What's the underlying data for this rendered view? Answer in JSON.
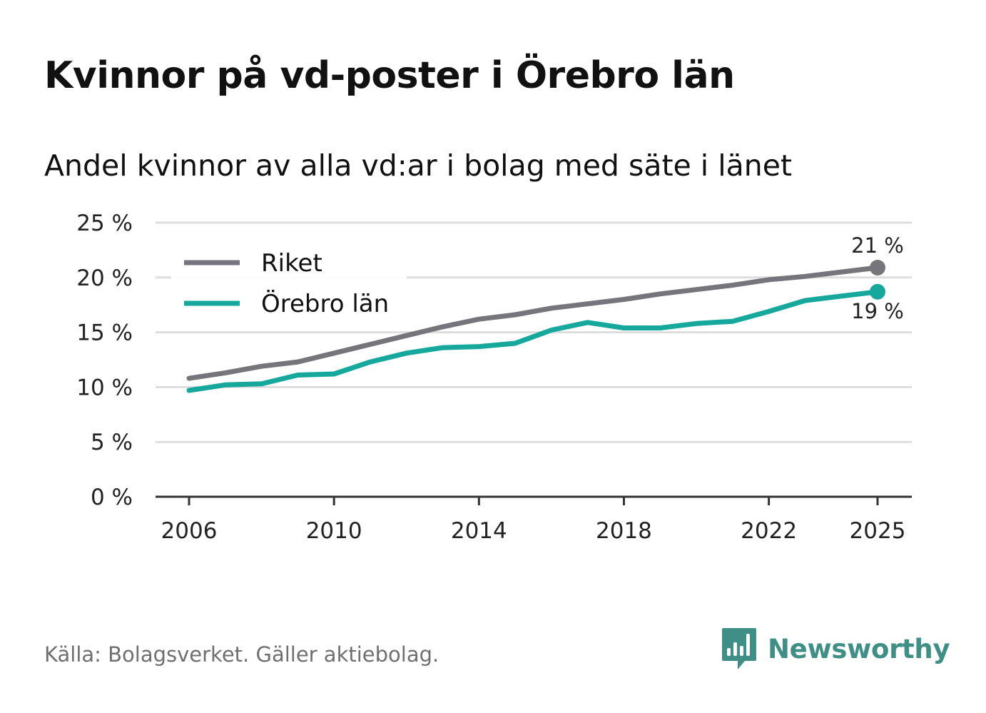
{
  "header": {
    "title": "Kvinnor på vd-poster i Örebro län",
    "subtitle": "Andel kvinnor av alla vd:ar i bolag med säte i länet"
  },
  "footer": {
    "source": "Källa: Bolagsverket. Gäller aktiebolag.",
    "brand": "Newsworthy"
  },
  "colors": {
    "riket": "#76757c",
    "orebro": "#16a89c",
    "grid": "#dedede",
    "axis": "#333333",
    "brand": "#3f8f86"
  },
  "chart_data": {
    "type": "line",
    "x": [
      2006,
      2007,
      2008,
      2009,
      2010,
      2011,
      2012,
      2013,
      2014,
      2015,
      2016,
      2017,
      2018,
      2019,
      2020,
      2021,
      2022,
      2023,
      2024,
      2025
    ],
    "series": [
      {
        "name": "Riket",
        "color": "#76757c",
        "values": [
          10.8,
          11.3,
          11.9,
          12.3,
          13.1,
          13.9,
          14.7,
          15.5,
          16.2,
          16.6,
          17.2,
          17.6,
          18.0,
          18.5,
          18.9,
          19.3,
          19.8,
          20.1,
          20.5,
          20.9
        ],
        "end_label": "21 %"
      },
      {
        "name": "Örebro län",
        "color": "#16a89c",
        "values": [
          9.7,
          10.2,
          10.3,
          11.1,
          11.2,
          12.3,
          13.1,
          13.6,
          13.7,
          14.0,
          15.2,
          15.9,
          15.4,
          15.4,
          15.8,
          16.0,
          16.9,
          17.9,
          18.3,
          18.7
        ],
        "end_label": "19 %"
      }
    ],
    "x_ticks": [
      2006,
      2010,
      2014,
      2018,
      2022,
      2025
    ],
    "y_ticks": [
      0,
      5,
      10,
      15,
      20,
      25
    ],
    "y_tick_labels": [
      "0 %",
      "5 %",
      "10 %",
      "15 %",
      "20 %",
      "25 %"
    ],
    "ylim": [
      0,
      25
    ],
    "xlim": [
      2006,
      2025
    ],
    "legend_position": "top-left",
    "grid": true
  }
}
